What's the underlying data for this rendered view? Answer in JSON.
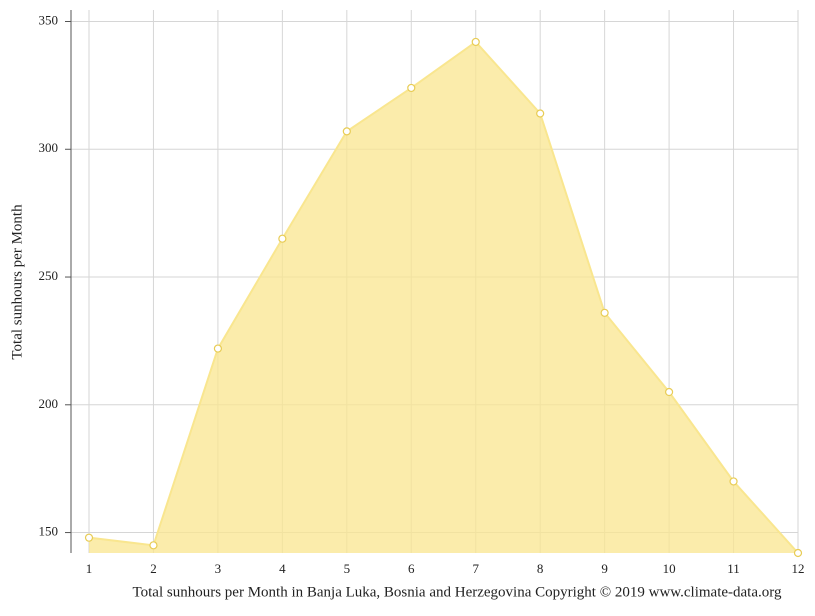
{
  "chart_data": {
    "type": "area",
    "title": "Total sunhours per Month in Banja Luka, Bosnia and Herzegovina Copyright © 2019 www.climate-data.org",
    "y_label": "Total sunhours per Month",
    "x": [
      1,
      2,
      3,
      4,
      5,
      6,
      7,
      8,
      9,
      10,
      11,
      12
    ],
    "values": [
      148,
      145,
      222,
      265,
      307,
      324,
      342,
      314,
      236,
      205,
      170,
      142
    ],
    "color": "#f9e68f",
    "xlim": [
      1,
      12
    ],
    "xticks": [
      1,
      2,
      3,
      4,
      5,
      6,
      7,
      8,
      9,
      10,
      11,
      12
    ],
    "ylim": [
      142,
      354.5
    ],
    "yticks": [
      150,
      200,
      250,
      300,
      350
    ],
    "grid": true
  }
}
